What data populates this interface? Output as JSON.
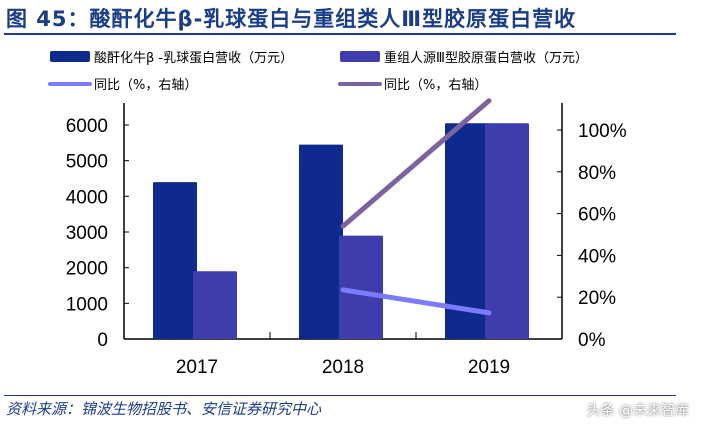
{
  "title": "图 45：酸酐化牛β-乳球蛋白与重组类人Ⅲ型胶原蛋白营收",
  "source": "资料来源：锦波生物招股书、安信证券研究中心",
  "watermark": "头条 @未来智库",
  "chart_data": {
    "type": "bar",
    "categories": [
      "2017",
      "2018",
      "2019"
    ],
    "series": [
      {
        "name": "酸酐化牛β -乳球蛋白营收（万元）",
        "kind": "bar",
        "axis": "left",
        "color": "#0f2a8f",
        "values": [
          4400,
          5450,
          6050
        ]
      },
      {
        "name": "重组人源Ⅲ型胶原蛋白营收（万元）",
        "kind": "bar",
        "axis": "left",
        "color": "#3f3dad",
        "values": [
          1900,
          2900,
          6050
        ]
      },
      {
        "name": "同比（%，右轴）",
        "kind": "line",
        "axis": "right",
        "color": "#7b7bff",
        "values": [
          null,
          23.5,
          12.5
        ]
      },
      {
        "name": "同比（%，右轴）",
        "kind": "line",
        "axis": "right",
        "color": "#7a63a0",
        "values": [
          null,
          54,
          114
        ]
      }
    ],
    "ylim": [
      0,
      6000
    ],
    "yticks": [
      "0",
      "1000",
      "2000",
      "3000",
      "4000",
      "5000",
      "6000"
    ],
    "y2lim": [
      0,
      100
    ],
    "y2ticks": [
      "0%",
      "20%",
      "40%",
      "60%",
      "80%",
      "100%"
    ],
    "legend": "top",
    "grid": false
  }
}
